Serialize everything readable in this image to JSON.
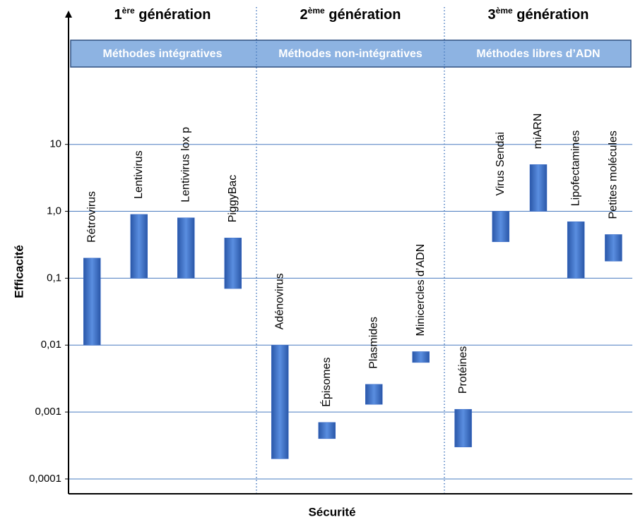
{
  "chart_data": {
    "type": "range_bar",
    "y_label": "Efficacité",
    "x_label": "Sécurité",
    "log": true,
    "grid": true,
    "color": "#3b6cc8",
    "ylim": [
      6e-05,
      1000
    ],
    "yticks": [
      {
        "value": 0.0001,
        "label": "0,0001"
      },
      {
        "value": 0.001,
        "label": "0,001"
      },
      {
        "value": 0.01,
        "label": "0,01"
      },
      {
        "value": 0.1,
        "label": "0,1"
      },
      {
        "value": 1,
        "label": "1,0"
      },
      10
    ],
    "groups": [
      {
        "generation": {
          "number": "1",
          "suffix": "ère",
          "text": "génération"
        },
        "method": "Méthodes intégratives",
        "categories": [
          "Rétrovirus",
          "Lentivirus",
          "Lentivirus lox p",
          "PiggyBac"
        ],
        "low": [
          0.01,
          0.1,
          0.1,
          0.07
        ],
        "high": [
          0.2,
          0.9,
          0.8,
          0.4
        ]
      },
      {
        "generation": {
          "number": "2",
          "suffix": "ème",
          "text": "génération"
        },
        "method": "Méthodes non-intégratives",
        "categories": [
          "Adénovirus",
          "Épisomes",
          "Plasmides",
          "Minicercles d’ADN"
        ],
        "low": [
          0.0002,
          0.0004,
          0.0013,
          0.0055
        ],
        "high": [
          0.01,
          0.0007,
          0.0026,
          0.008
        ]
      },
      {
        "generation": {
          "number": "3",
          "suffix": "ème",
          "text": "génération"
        },
        "method": "Méthodes libres d’ADN",
        "categories": [
          "Protéines",
          "Virus Sendai",
          "miARN",
          "Lipofectamines",
          "Petites molécules"
        ],
        "low": [
          0.0003,
          0.35,
          1,
          0.1,
          0.18
        ],
        "high": [
          0.0011,
          1,
          5,
          0.7,
          0.45
        ]
      }
    ]
  }
}
